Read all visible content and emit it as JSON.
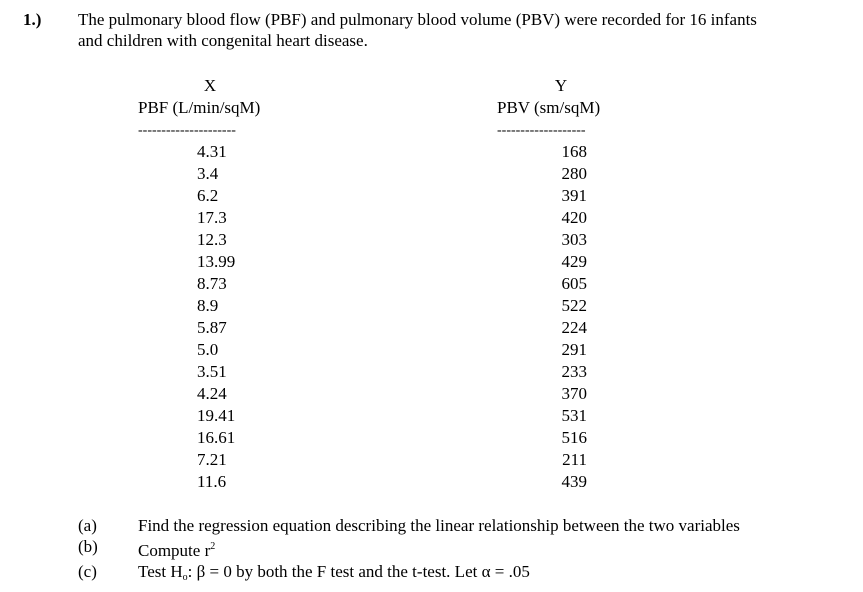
{
  "question": {
    "number": "1.)",
    "intro_line1": "The pulmonary blood flow (PBF) and pulmonary blood volume (PBV) were recorded for 16 infants",
    "intro_line2": "and children with congenital heart disease."
  },
  "table": {
    "x_header": {
      "letter": "X",
      "label": "PBF  (L/min/sqM)",
      "rule": "---------------------"
    },
    "y_header": {
      "letter": "Y",
      "label": "PBV  (sm/sqM)",
      "rule": "-------------------"
    },
    "rows": [
      {
        "x": "4.31",
        "y": "168"
      },
      {
        "x": "3.4",
        "y": "280"
      },
      {
        "x": "6.2",
        "y": "391"
      },
      {
        "x": "17.3",
        "y": "420"
      },
      {
        "x": "12.3",
        "y": "303"
      },
      {
        "x": "13.99",
        "y": "429"
      },
      {
        "x": "8.73",
        "y": "605"
      },
      {
        "x": "8.9",
        "y": "522"
      },
      {
        "x": "5.87",
        "y": "224"
      },
      {
        "x": "5.0",
        "y": "291"
      },
      {
        "x": "3.51",
        "y": "233"
      },
      {
        "x": "4.24",
        "y": "370"
      },
      {
        "x": "19.41",
        "y": "531"
      },
      {
        "x": "16.61",
        "y": "516"
      },
      {
        "x": "7.21",
        "y": "211"
      },
      {
        "x": "11.6",
        "y": "439"
      }
    ]
  },
  "parts": {
    "a": {
      "label": "(a)",
      "text": "Find the regression equation describing the linear relationship between the two variables"
    },
    "b": {
      "label": "(b)",
      "text": "Compute r",
      "sup": "2"
    },
    "c": {
      "label": "(c)",
      "text_pre": "Test H",
      "sub": "o",
      "text_post": ": β = 0 by both the F test and the t-test.  Let α = .05"
    }
  }
}
